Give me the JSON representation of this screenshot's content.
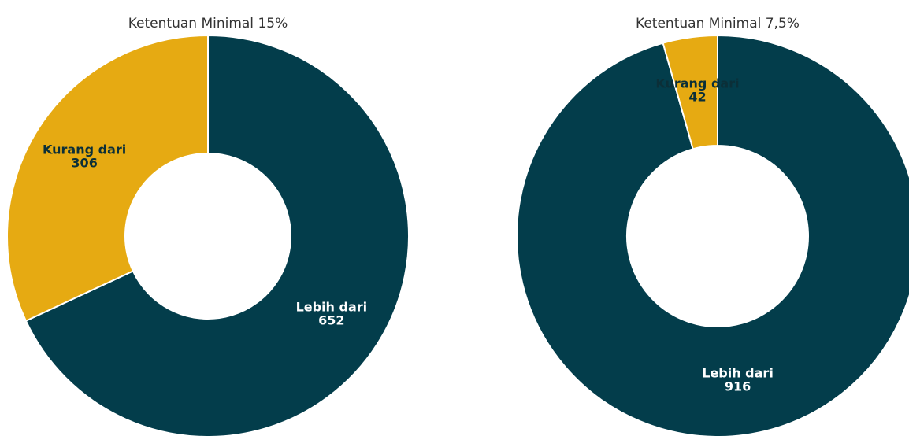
{
  "chart_data": [
    {
      "type": "pie",
      "title": "Ketentuan Minimal 15%",
      "categories": [
        "Lebih dari",
        "Kurang dari"
      ],
      "values": [
        652,
        306
      ],
      "colors": [
        "#033d4b",
        "#e6aa12"
      ]
    },
    {
      "type": "pie",
      "title": "Ketentuan Minimal 7,5%",
      "categories": [
        "Lebih dari",
        "Kurang dari"
      ],
      "values": [
        916,
        42
      ],
      "colors": [
        "#033d4b",
        "#e6aa12"
      ]
    }
  ]
}
